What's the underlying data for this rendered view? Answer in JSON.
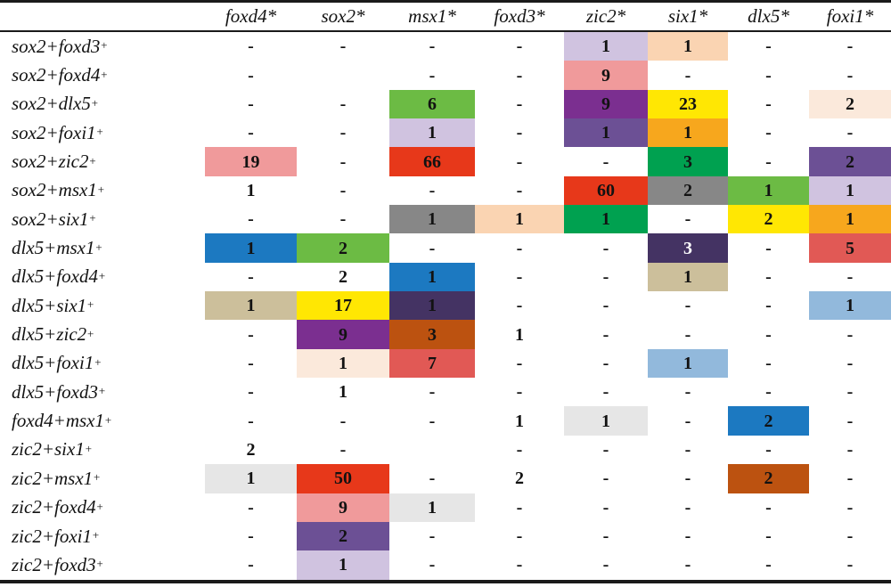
{
  "palette": {
    "pink": "#F09A9B",
    "red": "#E7381A",
    "appleGreen": "#6CBB44",
    "lavender": "#D0C3E0",
    "purple": "#7B2F90",
    "slatePurple": "#6C5095",
    "yellow": "#FFE703",
    "orange": "#F7A71D",
    "peach": "#FAD4B2",
    "cream": "#FBE9DB",
    "kellyGreen": "#00A150",
    "gray": "#878787",
    "blue": "#1C79C1",
    "tan": "#CCBF9B",
    "darkNavy": "#443363",
    "brown": "#BC5210",
    "salmonRed": "#E15955",
    "lightBlue": "#92B9DC",
    "lightGray": "#E6E6E6"
  },
  "chart_data": {
    "type": "heatmap",
    "columns": [
      "foxd4*",
      "sox2*",
      "msx1*",
      "foxd3*",
      "zic2*",
      "six1*",
      "dlx5*",
      "foxi1*"
    ],
    "corner_label": "",
    "rows": [
      {
        "label": "sox2+foxd3",
        "sup": "+",
        "cells": [
          {
            "v": "-"
          },
          {
            "v": "-"
          },
          {
            "v": "-"
          },
          {
            "v": "-"
          },
          {
            "v": "1",
            "bg": "lavender"
          },
          {
            "v": "1",
            "bg": "peach"
          },
          {
            "v": "-"
          },
          {
            "v": "-"
          }
        ]
      },
      {
        "label": "sox2+foxd4",
        "sup": "+",
        "cells": [
          {
            "v": "-"
          },
          {
            "v": ""
          },
          {
            "v": "-"
          },
          {
            "v": "-"
          },
          {
            "v": "9",
            "bg": "pink"
          },
          {
            "v": "-"
          },
          {
            "v": "-"
          },
          {
            "v": "-"
          }
        ]
      },
      {
        "label": "sox2+dlx5",
        "sup": "+",
        "cells": [
          {
            "v": "-"
          },
          {
            "v": "-"
          },
          {
            "v": "6",
            "bg": "appleGreen"
          },
          {
            "v": "-"
          },
          {
            "v": "9",
            "bg": "purple"
          },
          {
            "v": "23",
            "bg": "yellow"
          },
          {
            "v": "-"
          },
          {
            "v": "2",
            "bg": "cream"
          }
        ]
      },
      {
        "label": "sox2+foxi1",
        "sup": "+",
        "cells": [
          {
            "v": "-"
          },
          {
            "v": "-"
          },
          {
            "v": "1",
            "bg": "lavender"
          },
          {
            "v": "-"
          },
          {
            "v": "1",
            "bg": "slatePurple"
          },
          {
            "v": "1",
            "bg": "orange"
          },
          {
            "v": "-"
          },
          {
            "v": "-"
          }
        ]
      },
      {
        "label": "sox2+zic2",
        "sup": "+",
        "cells": [
          {
            "v": "19",
            "bg": "pink"
          },
          {
            "v": "-"
          },
          {
            "v": "66",
            "bg": "red"
          },
          {
            "v": "-"
          },
          {
            "v": "-"
          },
          {
            "v": "3",
            "bg": "kellyGreen"
          },
          {
            "v": "-"
          },
          {
            "v": "2",
            "bg": "slatePurple"
          }
        ]
      },
      {
        "label": "sox2+msx1",
        "sup": "+",
        "cells": [
          {
            "v": "1"
          },
          {
            "v": "-"
          },
          {
            "v": "-"
          },
          {
            "v": "-"
          },
          {
            "v": "60",
            "bg": "red"
          },
          {
            "v": "2",
            "bg": "gray"
          },
          {
            "v": "1",
            "bg": "appleGreen"
          },
          {
            "v": "1",
            "bg": "lavender"
          }
        ]
      },
      {
        "label": "sox2+six1",
        "sup": "+",
        "cells": [
          {
            "v": "-"
          },
          {
            "v": "-"
          },
          {
            "v": "1",
            "bg": "gray"
          },
          {
            "v": "1",
            "bg": "peach"
          },
          {
            "v": "1",
            "bg": "kellyGreen"
          },
          {
            "v": "-"
          },
          {
            "v": "2",
            "bg": "yellow"
          },
          {
            "v": "1",
            "bg": "orange"
          }
        ]
      },
      {
        "label": "dlx5+msx1",
        "sup": "+",
        "cells": [
          {
            "v": "1",
            "bg": "blue"
          },
          {
            "v": "2",
            "bg": "appleGreen"
          },
          {
            "v": "-"
          },
          {
            "v": "-"
          },
          {
            "v": "-"
          },
          {
            "v": "3",
            "bg": "darkNavy",
            "fg": "#ffffff"
          },
          {
            "v": "-"
          },
          {
            "v": "5",
            "bg": "salmonRed"
          }
        ]
      },
      {
        "label": "dlx5+foxd4",
        "sup": "+",
        "cells": [
          {
            "v": "-"
          },
          {
            "v": "2"
          },
          {
            "v": "1",
            "bg": "blue"
          },
          {
            "v": "-"
          },
          {
            "v": "-"
          },
          {
            "v": "1",
            "bg": "tan"
          },
          {
            "v": "-"
          },
          {
            "v": "-"
          }
        ]
      },
      {
        "label": "dlx5+six1",
        "sup": "+",
        "cells": [
          {
            "v": "1",
            "bg": "tan"
          },
          {
            "v": "17",
            "bg": "yellow"
          },
          {
            "v": "1",
            "bg": "darkNavy"
          },
          {
            "v": "-"
          },
          {
            "v": "-"
          },
          {
            "v": "-"
          },
          {
            "v": "-"
          },
          {
            "v": "1",
            "bg": "lightBlue"
          }
        ]
      },
      {
        "label": "dlx5+zic2",
        "sup": "+",
        "cells": [
          {
            "v": "-"
          },
          {
            "v": "9",
            "bg": "purple"
          },
          {
            "v": "3",
            "bg": "brown"
          },
          {
            "v": "1"
          },
          {
            "v": "-"
          },
          {
            "v": "-"
          },
          {
            "v": "-"
          },
          {
            "v": "-"
          }
        ]
      },
      {
        "label": "dlx5+foxi1",
        "sup": "+",
        "cells": [
          {
            "v": "-"
          },
          {
            "v": "1",
            "bg": "cream"
          },
          {
            "v": "7",
            "bg": "salmonRed"
          },
          {
            "v": "-"
          },
          {
            "v": "-"
          },
          {
            "v": "1",
            "bg": "lightBlue"
          },
          {
            "v": "-"
          },
          {
            "v": "-"
          }
        ]
      },
      {
        "label": "dlx5+foxd3",
        "sup": "+",
        "cells": [
          {
            "v": "-"
          },
          {
            "v": "1"
          },
          {
            "v": "-"
          },
          {
            "v": "-"
          },
          {
            "v": "-"
          },
          {
            "v": "-"
          },
          {
            "v": "-"
          },
          {
            "v": "-"
          }
        ]
      },
      {
        "label": "foxd4+msx1",
        "sup": "+",
        "cells": [
          {
            "v": "-"
          },
          {
            "v": "-"
          },
          {
            "v": "-"
          },
          {
            "v": "1"
          },
          {
            "v": "1",
            "bg": "lightGray"
          },
          {
            "v": "-"
          },
          {
            "v": "2",
            "bg": "blue"
          },
          {
            "v": "-"
          }
        ]
      },
      {
        "label": "zic2+six1",
        "sup": "+",
        "cells": [
          {
            "v": "2"
          },
          {
            "v": "-"
          },
          {
            "v": ""
          },
          {
            "v": "-"
          },
          {
            "v": "-"
          },
          {
            "v": "-"
          },
          {
            "v": "-"
          },
          {
            "v": "-"
          }
        ]
      },
      {
        "label": "zic2+msx1",
        "sup": "+",
        "cells": [
          {
            "v": "1",
            "bg": "lightGray"
          },
          {
            "v": "50",
            "bg": "red"
          },
          {
            "v": "-"
          },
          {
            "v": "2"
          },
          {
            "v": "-"
          },
          {
            "v": "-"
          },
          {
            "v": "2",
            "bg": "brown"
          },
          {
            "v": "-"
          }
        ]
      },
      {
        "label": "zic2+foxd4",
        "sup": "+",
        "cells": [
          {
            "v": "-"
          },
          {
            "v": "9",
            "bg": "pink"
          },
          {
            "v": "1",
            "bg": "lightGray"
          },
          {
            "v": "-"
          },
          {
            "v": "-"
          },
          {
            "v": "-"
          },
          {
            "v": "-"
          },
          {
            "v": "-"
          }
        ]
      },
      {
        "label": "zic2+foxi1",
        "sup": "+",
        "cells": [
          {
            "v": "-"
          },
          {
            "v": "2",
            "bg": "slatePurple"
          },
          {
            "v": "-"
          },
          {
            "v": "-"
          },
          {
            "v": "-"
          },
          {
            "v": "-"
          },
          {
            "v": "-"
          },
          {
            "v": "-"
          }
        ]
      },
      {
        "label": "zic2+foxd3",
        "sup": "+",
        "cells": [
          {
            "v": "-"
          },
          {
            "v": "1",
            "bg": "lavender"
          },
          {
            "v": "-"
          },
          {
            "v": "-"
          },
          {
            "v": "-"
          },
          {
            "v": "-"
          },
          {
            "v": "-"
          },
          {
            "v": "-"
          }
        ]
      }
    ]
  }
}
